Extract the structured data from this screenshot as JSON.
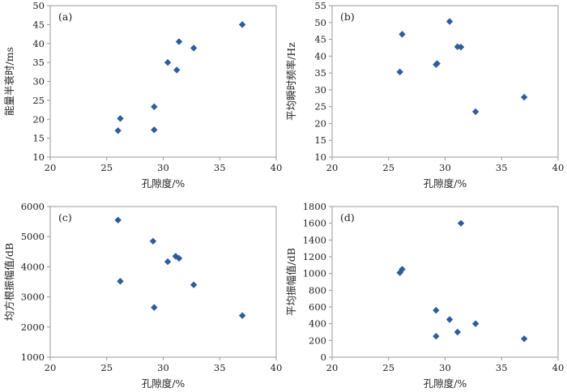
{
  "chart_data": [
    {
      "type": "scatter",
      "panel_label": "(a)",
      "xlabel": "孔隙度/%",
      "ylabel": "能量半衰时/ms",
      "xlim": [
        20,
        40
      ],
      "ylim": [
        10,
        50
      ],
      "xticks": [
        20,
        25,
        30,
        35,
        40
      ],
      "yticks": [
        10,
        15,
        20,
        25,
        30,
        35,
        40,
        45,
        50
      ],
      "grid": false,
      "marker_color": "#2e5c9e",
      "points": [
        {
          "x": 26.0,
          "y": 17.0
        },
        {
          "x": 26.2,
          "y": 20.2
        },
        {
          "x": 29.2,
          "y": 17.2
        },
        {
          "x": 29.2,
          "y": 23.3
        },
        {
          "x": 30.4,
          "y": 35.0
        },
        {
          "x": 31.2,
          "y": 33.0
        },
        {
          "x": 31.4,
          "y": 40.5
        },
        {
          "x": 32.7,
          "y": 38.8
        },
        {
          "x": 37.0,
          "y": 45.0
        }
      ]
    },
    {
      "type": "scatter",
      "panel_label": "(b)",
      "xlabel": "孔隙度/%",
      "ylabel": "平均瞬时频率/Hz",
      "xlim": [
        20,
        40
      ],
      "ylim": [
        10,
        55
      ],
      "xticks": [
        20,
        25,
        30,
        35,
        40
      ],
      "yticks": [
        10,
        15,
        20,
        25,
        30,
        35,
        40,
        45,
        50,
        55
      ],
      "grid": false,
      "marker_color": "#2e5c9e",
      "points": [
        {
          "x": 26.0,
          "y": 35.3
        },
        {
          "x": 26.2,
          "y": 46.5
        },
        {
          "x": 29.2,
          "y": 37.5
        },
        {
          "x": 29.3,
          "y": 37.8
        },
        {
          "x": 30.4,
          "y": 50.3
        },
        {
          "x": 31.1,
          "y": 42.8
        },
        {
          "x": 31.4,
          "y": 42.7
        },
        {
          "x": 32.7,
          "y": 23.5
        },
        {
          "x": 37.0,
          "y": 27.8
        }
      ]
    },
    {
      "type": "scatter",
      "panel_label": "(c)",
      "xlabel": "孔隙度/%",
      "ylabel": "均方根振幅值/dB",
      "xlim": [
        20,
        40
      ],
      "ylim": [
        1000,
        6000
      ],
      "xticks": [
        20,
        25,
        30,
        35,
        40
      ],
      "yticks": [
        1000,
        2000,
        3000,
        4000,
        5000,
        6000
      ],
      "grid": false,
      "marker_color": "#2e5c9e",
      "points": [
        {
          "x": 26.0,
          "y": 5550
        },
        {
          "x": 26.2,
          "y": 3520
        },
        {
          "x": 29.1,
          "y": 4850
        },
        {
          "x": 29.2,
          "y": 2650
        },
        {
          "x": 30.4,
          "y": 4170
        },
        {
          "x": 31.1,
          "y": 4350
        },
        {
          "x": 31.4,
          "y": 4280
        },
        {
          "x": 32.7,
          "y": 3400
        },
        {
          "x": 37.0,
          "y": 2380
        }
      ]
    },
    {
      "type": "scatter",
      "panel_label": "(d)",
      "xlabel": "孔隙度/%",
      "ylabel": "平均振幅值/dB",
      "xlim": [
        20,
        40
      ],
      "ylim": [
        0,
        1800
      ],
      "xticks": [
        20,
        25,
        30,
        35,
        40
      ],
      "yticks": [
        0,
        200,
        400,
        600,
        800,
        1000,
        1200,
        1400,
        1600,
        1800
      ],
      "grid": false,
      "marker_color": "#2e5c9e",
      "points": [
        {
          "x": 26.0,
          "y": 1010
        },
        {
          "x": 26.2,
          "y": 1050
        },
        {
          "x": 29.2,
          "y": 560
        },
        {
          "x": 29.2,
          "y": 250
        },
        {
          "x": 30.4,
          "y": 450
        },
        {
          "x": 31.1,
          "y": 300
        },
        {
          "x": 31.4,
          "y": 1600
        },
        {
          "x": 32.7,
          "y": 400
        },
        {
          "x": 37.0,
          "y": 220
        }
      ]
    }
  ]
}
